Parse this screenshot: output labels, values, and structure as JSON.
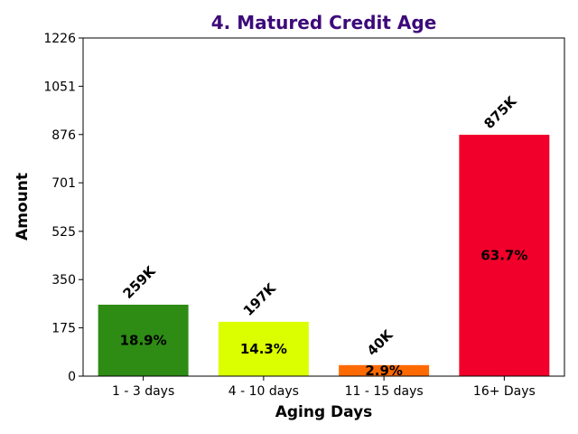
{
  "chart_data": {
    "type": "bar",
    "title": "4. Matured Credit Age",
    "title_color": "#3d0a7a",
    "xlabel": "Aging Days",
    "ylabel": "Amount",
    "categories": [
      "1 - 3 days",
      "4 - 10 days",
      "11 - 15 days",
      "16+ Days"
    ],
    "values": [
      259,
      197,
      40,
      875
    ],
    "value_labels": [
      "259K",
      "197K",
      "40K",
      "875K"
    ],
    "percent_labels": [
      "18.9%",
      "14.3%",
      "2.9%",
      "63.7%"
    ],
    "colors": [
      "#2e8b14",
      "#dcff00",
      "#ff6a00",
      "#f0002a"
    ],
    "ylim": [
      0,
      1226
    ],
    "yticks": [
      0,
      175,
      350,
      525,
      701,
      876,
      1051,
      1226
    ],
    "grid": false,
    "legend": "none"
  }
}
